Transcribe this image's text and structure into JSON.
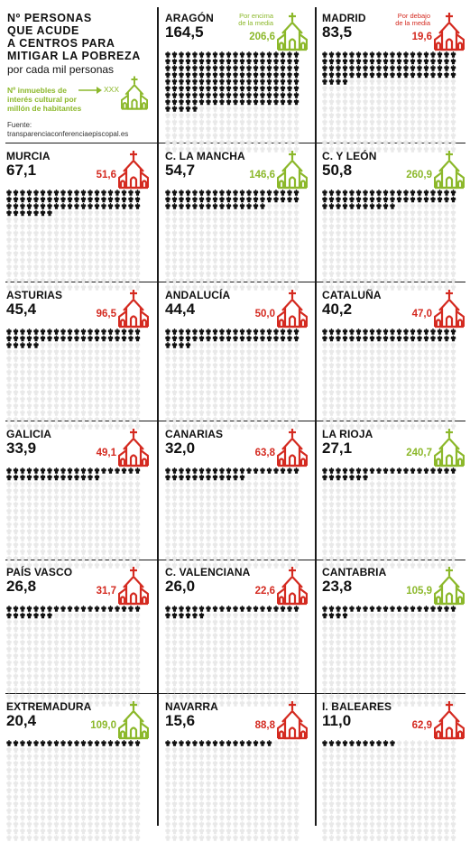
{
  "intro": {
    "title_lines": [
      "Nº PERSONAS",
      "QUE ACUDE",
      "A CENTROS PARA",
      "MITIGAR LA POBREZA"
    ],
    "subtitle": "por cada mil personas",
    "legend_lines": [
      "Nº inmuebles de",
      "interés cultural por",
      "millón de habitantes"
    ],
    "legend_placeholder": "XXX",
    "source_label": "Fuente:",
    "source_value": "transparenciaconferenciaepiscopal.es"
  },
  "notes": {
    "above_lines": [
      "Por encima",
      "de la media"
    ],
    "below_lines": [
      "Por debajo",
      "de la media"
    ]
  },
  "colors": {
    "above_average": "#8cb82b",
    "below_average": "#d42a20",
    "filled_person": "#111111",
    "empty_person": "#e9e9e9"
  },
  "chart_data": {
    "type": "pictogram",
    "value_label": "Nº personas que acude a centros para mitigar la pobreza por cada mil personas",
    "secondary_label": "Nº inmuebles de interés cultural por millón de habitantes",
    "regions": [
      {
        "name": "ARAGÓN",
        "people_per_thousand": "164,5",
        "people": 164.5,
        "heritage": "206,6",
        "heritage_status": "above",
        "show_note": true
      },
      {
        "name": "MADRID",
        "people_per_thousand": "83,5",
        "people": 83.5,
        "heritage": "19,6",
        "heritage_status": "below",
        "show_note": true
      },
      {
        "name": "MURCIA",
        "people_per_thousand": "67,1",
        "people": 67.1,
        "heritage": "51,6",
        "heritage_status": "below"
      },
      {
        "name": "C. LA MANCHA",
        "people_per_thousand": "54,7",
        "people": 54.7,
        "heritage": "146,6",
        "heritage_status": "above"
      },
      {
        "name": "C. Y LEÓN",
        "people_per_thousand": "50,8",
        "people": 50.8,
        "heritage": "260,9",
        "heritage_status": "above"
      },
      {
        "name": "ASTURIAS",
        "people_per_thousand": "45,4",
        "people": 45.4,
        "heritage": "96,5",
        "heritage_status": "below"
      },
      {
        "name": "ANDALUCÍA",
        "people_per_thousand": "44,4",
        "people": 44.4,
        "heritage": "50,0",
        "heritage_status": "below"
      },
      {
        "name": "CATALUÑA",
        "people_per_thousand": "40,2",
        "people": 40.2,
        "heritage": "47,0",
        "heritage_status": "below"
      },
      {
        "name": "GALICIA",
        "people_per_thousand": "33,9",
        "people": 33.9,
        "heritage": "49,1",
        "heritage_status": "below"
      },
      {
        "name": "CANARIAS",
        "people_per_thousand": "32,0",
        "people": 32.0,
        "heritage": "63,8",
        "heritage_status": "below"
      },
      {
        "name": "LA RIOJA",
        "people_per_thousand": "27,1",
        "people": 27.1,
        "heritage": "240,7",
        "heritage_status": "above"
      },
      {
        "name": "PAÍS VASCO",
        "people_per_thousand": "26,8",
        "people": 26.8,
        "heritage": "31,7",
        "heritage_status": "below"
      },
      {
        "name": "C. VALENCIANA",
        "people_per_thousand": "26,0",
        "people": 26.0,
        "heritage": "22,6",
        "heritage_status": "below"
      },
      {
        "name": "CANTABRIA",
        "people_per_thousand": "23,8",
        "people": 23.8,
        "heritage": "105,9",
        "heritage_status": "above"
      },
      {
        "name": "EXTREMADURA",
        "people_per_thousand": "20,4",
        "people": 20.4,
        "heritage": "109,0",
        "heritage_status": "above"
      },
      {
        "name": "NAVARRA",
        "people_per_thousand": "15,6",
        "people": 15.6,
        "heritage": "88,8",
        "heritage_status": "below"
      },
      {
        "name": "I. BALEARES",
        "people_per_thousand": "11,0",
        "people": 11.0,
        "heritage": "62,9",
        "heritage_status": "below"
      }
    ]
  }
}
